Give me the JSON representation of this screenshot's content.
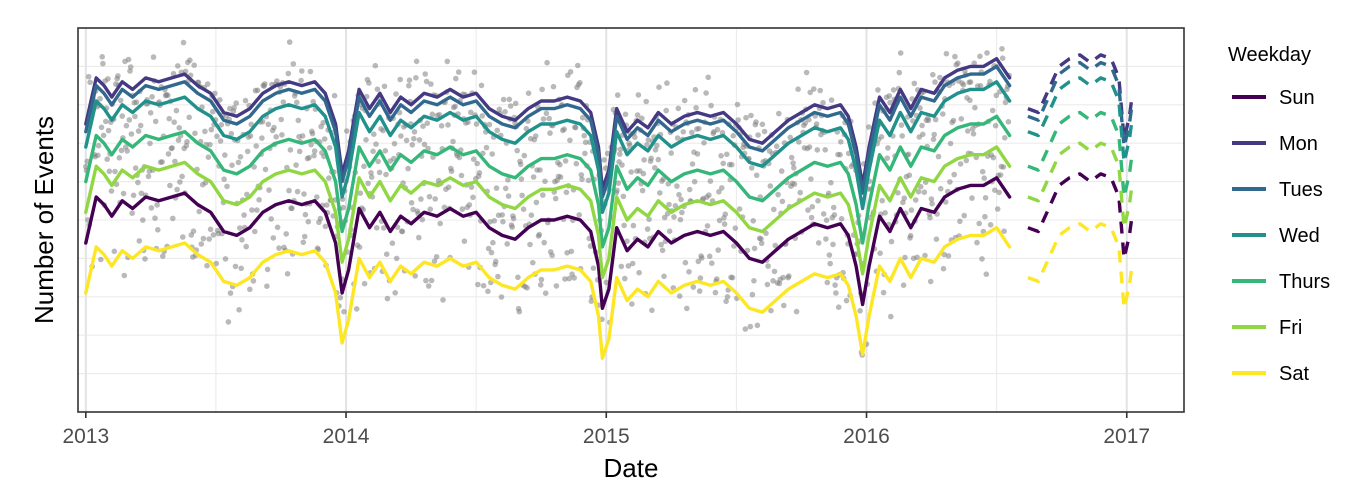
{
  "chart_data": {
    "type": "line",
    "title": "",
    "xlabel": "Date",
    "ylabel": "Number of Events",
    "xlim": [
      2012.97,
      2017.22
    ],
    "ylim": [
      0,
      100
    ],
    "x_ticks": [
      2013,
      2014,
      2015,
      2016,
      2017
    ],
    "x_tick_labels": [
      "2013",
      "2014",
      "2015",
      "2016",
      "2017"
    ],
    "y_grid": [
      10,
      20,
      30,
      40,
      50,
      60,
      70,
      80,
      90
    ],
    "grid": true,
    "legend": {
      "title": "Weekday",
      "position": "right"
    },
    "observed_until": 2016.55,
    "forecast_from": 2016.62,
    "base_profile": {
      "x": [
        2013.0,
        2013.04,
        2013.07,
        2013.1,
        2013.14,
        2013.18,
        2013.23,
        2013.28,
        2013.33,
        2013.38,
        2013.43,
        2013.48,
        2013.53,
        2013.58,
        2013.63,
        2013.68,
        2013.73,
        2013.78,
        2013.83,
        2013.88,
        2013.92,
        2013.96,
        2013.985,
        2014.01,
        2014.05,
        2014.09,
        2014.13,
        2014.17,
        2014.21,
        2014.25,
        2014.3,
        2014.35,
        2014.4,
        2014.45,
        2014.5,
        2014.55,
        2014.6,
        2014.65,
        2014.7,
        2014.75,
        2014.8,
        2014.85,
        2014.9,
        2014.94,
        2014.97,
        2014.985,
        2015.01,
        2015.04,
        2015.08,
        2015.12,
        2015.16,
        2015.2,
        2015.25,
        2015.3,
        2015.35,
        2015.4,
        2015.45,
        2015.5,
        2015.55,
        2015.6,
        2015.65,
        2015.7,
        2015.75,
        2015.8,
        2015.85,
        2015.9,
        2015.93,
        2015.96,
        2015.985,
        2016.01,
        2016.05,
        2016.09,
        2016.13,
        2016.17,
        2016.21,
        2016.26,
        2016.3,
        2016.35,
        2016.4,
        2016.45,
        2016.5,
        2016.55,
        2016.62,
        2016.66,
        2016.7,
        2016.74,
        2016.78,
        2016.82,
        2016.86,
        2016.9,
        2016.94,
        2016.97,
        2016.99,
        2017.01,
        2017.02
      ],
      "y": [
        44,
        56,
        54,
        51,
        55,
        53,
        56,
        55,
        56,
        57,
        54,
        52,
        47,
        46,
        48,
        52,
        54,
        55,
        54,
        55,
        52,
        44,
        31,
        37,
        53,
        48,
        52,
        47,
        51,
        49,
        52,
        51,
        53,
        51,
        52,
        48,
        46,
        45,
        48,
        50,
        50,
        51,
        50,
        47,
        38,
        27,
        32,
        48,
        42,
        45,
        43,
        47,
        44,
        46,
        47,
        46,
        47,
        44,
        40,
        39,
        42,
        45,
        47,
        49,
        48,
        49,
        46,
        38,
        28,
        38,
        51,
        47,
        53,
        48,
        53,
        52,
        56,
        58,
        59,
        59,
        61,
        56,
        48,
        47,
        53,
        59,
        61,
        62,
        60,
        62,
        61,
        56,
        40,
        46,
        51
      ]
    },
    "series": [
      {
        "name": "Sun",
        "color": "#440154",
        "offset": 0
      },
      {
        "name": "Mon",
        "color": "#443983",
        "offset": 31
      },
      {
        "name": "Tues",
        "color": "#31688e",
        "offset": 29
      },
      {
        "name": "Wed",
        "color": "#21918c",
        "offset": 25
      },
      {
        "name": "Thurs",
        "color": "#35b779",
        "offset": 16
      },
      {
        "name": "Fri",
        "color": "#90d743",
        "offset": 8
      },
      {
        "name": "Sat",
        "color": "#fde725",
        "offset": -13
      }
    ]
  }
}
